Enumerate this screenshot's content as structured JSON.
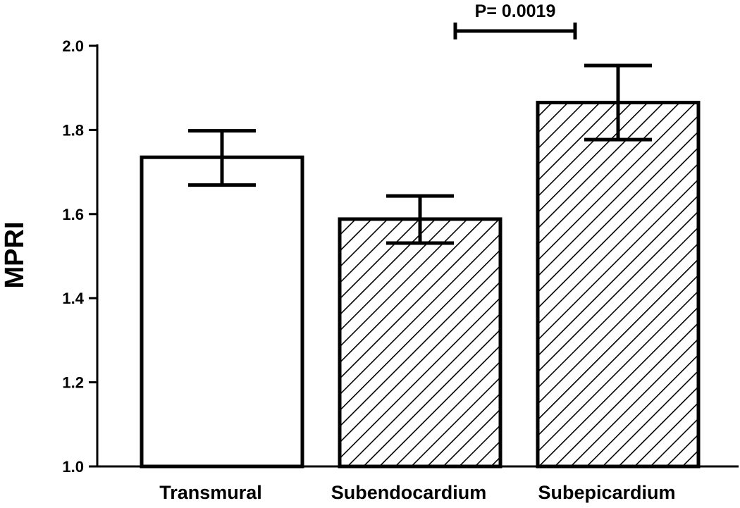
{
  "chart_data": {
    "type": "bar",
    "title": "",
    "xlabel": "",
    "ylabel": "MPRI",
    "categories": [
      "Transmural",
      "Subendocardium",
      "Subepicardium"
    ],
    "values": [
      1.735,
      1.588,
      1.865
    ],
    "error_plus": [
      0.063,
      0.055,
      0.088
    ],
    "error_minus": [
      0.066,
      0.057,
      0.088
    ],
    "fill_patterns": [
      "none",
      "hatch",
      "hatch"
    ],
    "ylim": [
      1.0,
      2.0
    ],
    "yticks": [
      1.0,
      1.2,
      1.4,
      1.6,
      1.8,
      2.0
    ],
    "ytick_labels": [
      "1.0",
      "1.2",
      "1.4",
      "1.6",
      "1.8",
      "2.0"
    ],
    "grid": false,
    "legend": "none",
    "annotations": [
      {
        "text": "P= 0.0019",
        "between": [
          "Subendocardium",
          "Subepicardium"
        ]
      }
    ]
  }
}
